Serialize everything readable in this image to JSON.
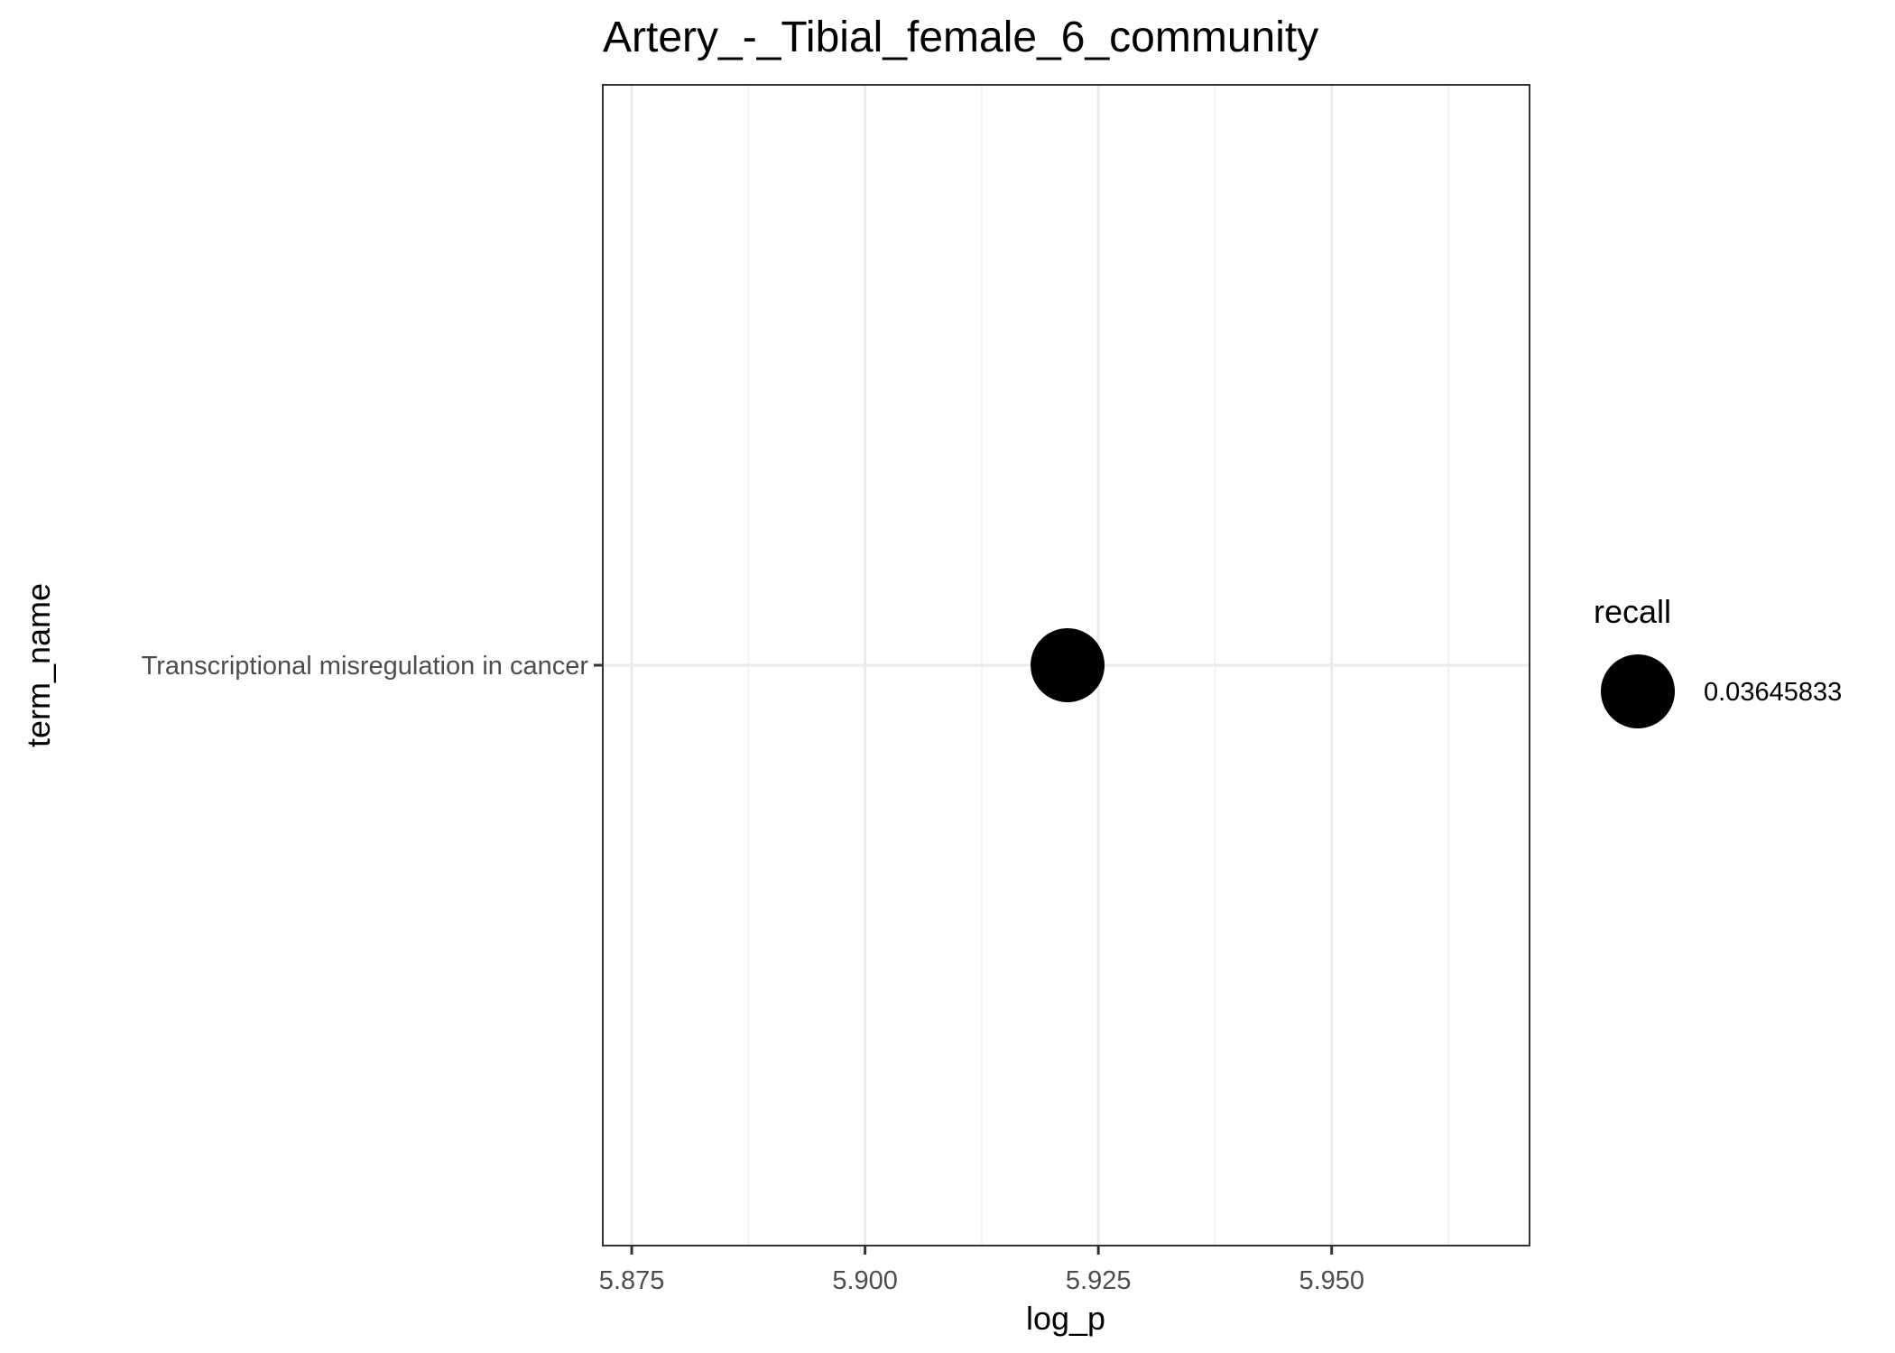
{
  "chart_data": {
    "type": "scatter",
    "title": "Artery_-_Tibial_female_6_community",
    "xlabel": "log_p",
    "ylabel": "term_name",
    "xlim": [
      5.8719,
      5.9712
    ],
    "x_ticks": [
      5.875,
      5.9,
      5.925,
      5.95
    ],
    "x_tick_labels": [
      "5.875",
      "5.900",
      "5.925",
      "5.950"
    ],
    "categories": [
      "Transcriptional misregulation in cancer"
    ],
    "points": [
      {
        "term_name": "Transcriptional misregulation in cancer",
        "log_p": 5.9217,
        "recall": 0.03645833
      }
    ],
    "grid": true,
    "legend": {
      "title": "recall",
      "position": "right",
      "entries": [
        {
          "label": "0.03645833",
          "value": 0.03645833
        }
      ]
    },
    "colors": {
      "point": "#000000",
      "panel_border": "#333333",
      "grid_major": "#ebebeb",
      "grid_minor": "#f3f3f3",
      "tick_text": "#4d4d4d",
      "label_text": "#000000"
    }
  }
}
